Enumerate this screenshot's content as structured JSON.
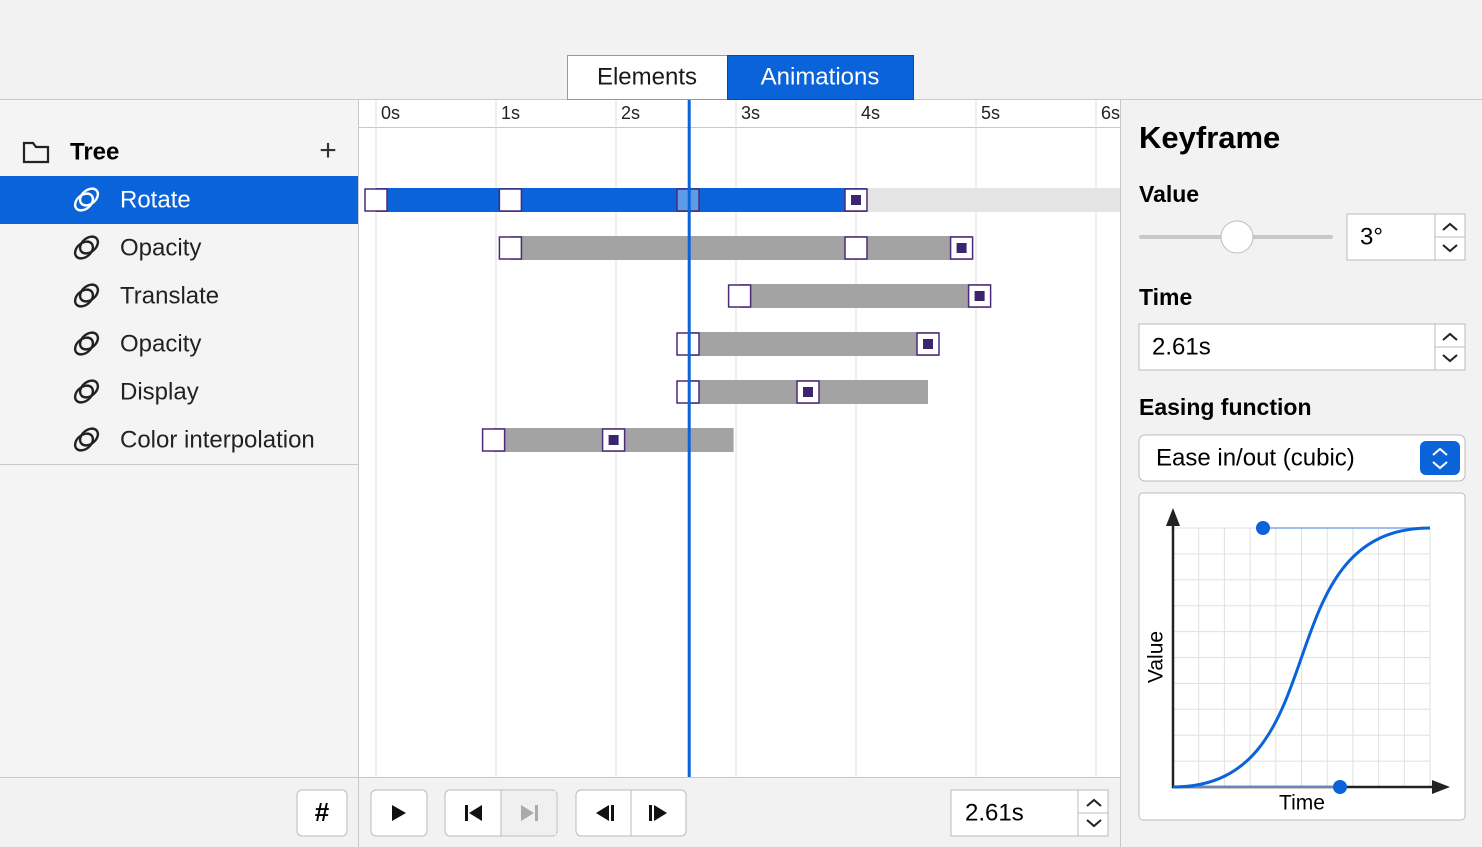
{
  "tabs": [
    "Elements",
    "Animations"
  ],
  "active_tab": 1,
  "tree": {
    "title": "Tree",
    "add_button": "+",
    "selected": 0,
    "items": [
      "Rotate",
      "Opacity",
      "Translate",
      "Opacity",
      "Display",
      "Color interpolation"
    ]
  },
  "timeline": {
    "ticks": [
      {
        "value": 0,
        "label": "0s"
      },
      {
        "value": 1,
        "label": "1s"
      },
      {
        "value": 2,
        "label": "2s"
      },
      {
        "value": 3,
        "label": "3s"
      },
      {
        "value": 4,
        "label": "4s"
      },
      {
        "value": 5,
        "label": "5s"
      },
      {
        "value": 6,
        "label": "6s"
      }
    ],
    "tracks": [
      {
        "keyframes": [
          0,
          1.12,
          2.6,
          4.0
        ],
        "end": 4.09
      },
      {
        "keyframes": [
          1.12,
          4.0,
          4.88
        ],
        "end": 4.97
      },
      {
        "keyframes": [
          3.03,
          5.03
        ],
        "end": 5.12
      },
      {
        "keyframes": [
          2.6,
          4.6
        ],
        "end": 4.69
      },
      {
        "keyframes": [
          2.6,
          3.6
        ],
        "end": 4.6
      },
      {
        "keyframes": [
          0.98,
          1.98
        ],
        "end": 2.98
      }
    ],
    "selected_keyframe": 2,
    "current_time": 2.61,
    "time_field": "2.61s"
  },
  "footer": {
    "hash_button": "#"
  },
  "inspector": {
    "title": "Keyframe",
    "value_label": "Value",
    "value_field": "3°",
    "time_label": "Time",
    "time_field": "2.61s",
    "easing_label": "Easing function",
    "easing_option": "Ease in/out (cubic)",
    "graph": {
      "y_label": "Value",
      "x_label": "Time"
    }
  }
}
